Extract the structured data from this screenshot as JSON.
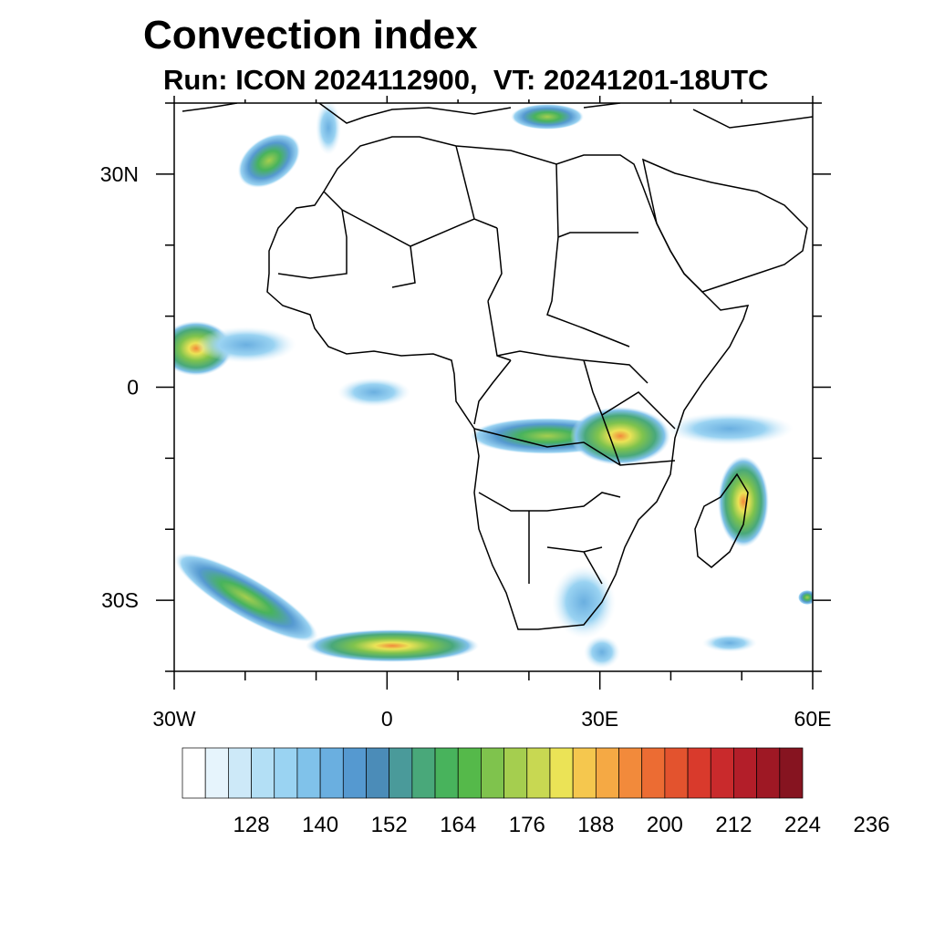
{
  "title": "Convection index",
  "subtitle": "Run: ICON 2024112900,  VT: 20241201-18UTC",
  "map": {
    "lon_range": [
      -30,
      60
    ],
    "lat_range": [
      -40,
      40
    ],
    "lon_ticks": [
      {
        "value": -30,
        "label": "30W"
      },
      {
        "value": 0,
        "label": "0"
      },
      {
        "value": 30,
        "label": "30E"
      },
      {
        "value": 60,
        "label": "60E"
      }
    ],
    "lat_ticks": [
      {
        "value": 30,
        "label": "30N"
      },
      {
        "value": 0,
        "label": "0"
      },
      {
        "value": -30,
        "label": "30S"
      }
    ]
  },
  "colorbar": {
    "colors": [
      "#ffffff",
      "#e6f4fc",
      "#cde9f8",
      "#b3dff5",
      "#9ad3f2",
      "#80c2ea",
      "#6aafe0",
      "#5599d0",
      "#4b8cb8",
      "#4a9a9a",
      "#49a87a",
      "#48b35c",
      "#55b94a",
      "#7fc34d",
      "#a5ce4f",
      "#c8d852",
      "#ebe356",
      "#f5c74e",
      "#f5a944",
      "#f28a3b",
      "#ec6c33",
      "#e3532e",
      "#d93a2c",
      "#c92a2c",
      "#b31e29",
      "#9e1824",
      "#861420"
    ],
    "labels": [
      "128",
      "140",
      "152",
      "164",
      "176",
      "188",
      "200",
      "212",
      "224",
      "236"
    ]
  },
  "chart_data": {
    "type": "heatmap",
    "title": "Convection index",
    "subtitle": "Run: ICON 2024112900,  VT: 20241201-18UTC",
    "xlim": [
      -30,
      60
    ],
    "ylim": [
      -40,
      40
    ],
    "colorbar_levels": [
      128,
      140,
      152,
      164,
      176,
      188,
      200,
      212,
      224,
      236
    ],
    "features": [
      {
        "lon": -27,
        "lat": 7,
        "value": 190
      },
      {
        "lon": -24,
        "lat": 6,
        "value": 180
      },
      {
        "lon": -14,
        "lat": 6.5,
        "value": 150
      },
      {
        "lon": -18,
        "lat": 30,
        "value": 165
      },
      {
        "lon": -3,
        "lat": 0,
        "value": 145
      },
      {
        "lon": 25,
        "lat": -5,
        "value": 175
      },
      {
        "lon": 33,
        "lat": -8,
        "value": 195
      },
      {
        "lon": 50,
        "lat": -15,
        "value": 200
      },
      {
        "lon": -18,
        "lat": -33,
        "value": 175
      },
      {
        "lon": 5,
        "lat": -37,
        "value": 178
      },
      {
        "lon": 28,
        "lat": -28,
        "value": 140
      }
    ]
  }
}
